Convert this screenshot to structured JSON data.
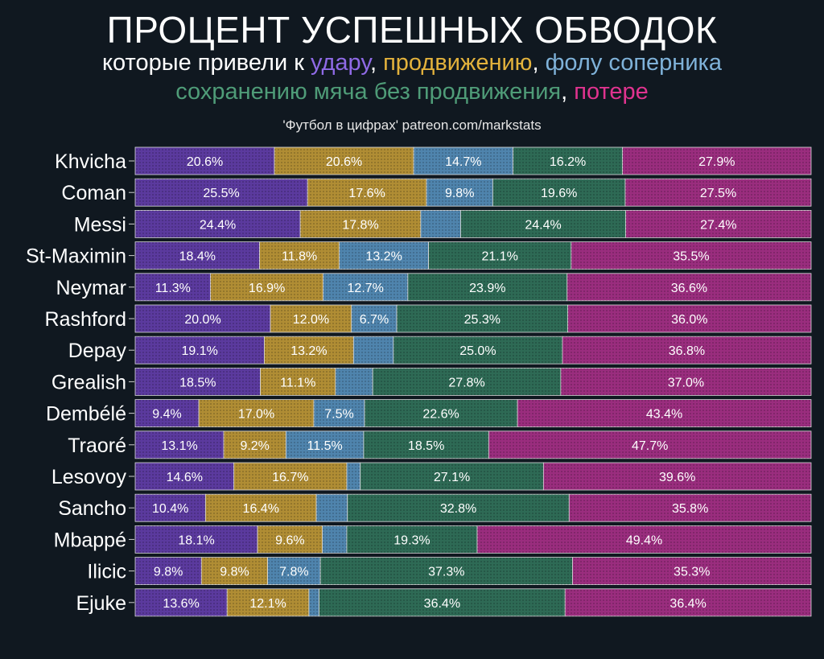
{
  "title": "ПРОЦЕНТ УСПЕШНЫХ ОБВОДОК",
  "subtitle": {
    "line1_prefix": "которые привели к ",
    "line2_sep": ", ",
    "line1_sep": ", ",
    "line2_comma": ", "
  },
  "credit": "'Футбол в цифрах' patreon.com/markstats",
  "colors": {
    "shot": "#5b3a9e",
    "progress": "#b08d34",
    "foul": "#4f84ad",
    "retain": "#2e6a55",
    "loss": "#9a2d7e"
  },
  "chart_data": {
    "type": "bar",
    "orientation": "horizontal",
    "stacked": true,
    "normalized": true,
    "title": "ПРОЦЕНТ УСПЕШНЫХ ОБВОДОК",
    "xlim": [
      0,
      100
    ],
    "categories": [
      "Khvicha",
      "Coman",
      "Messi",
      "St-Maximin",
      "Neymar",
      "Rashford",
      "Depay",
      "Grealish",
      "Dembélé",
      "Traoré",
      "Lesovoy",
      "Sancho",
      "Mbappé",
      "Ilicic",
      "Ejuke"
    ],
    "series": [
      {
        "key": "shot",
        "name": "удару",
        "color": "#5b3a9e",
        "values": [
          20.6,
          25.5,
          24.4,
          18.4,
          11.3,
          20.0,
          19.1,
          18.5,
          9.4,
          13.1,
          14.6,
          10.4,
          18.1,
          9.8,
          13.6
        ],
        "labels": [
          "20.6%",
          "25.5%",
          "24.4%",
          "18.4%",
          "11.3%",
          "20.0%",
          "19.1%",
          "18.5%",
          "9.4%",
          "13.1%",
          "14.6%",
          "10.4%",
          "18.1%",
          "9.8%",
          "13.6%"
        ]
      },
      {
        "key": "progress",
        "name": "продвижению",
        "color": "#b08d34",
        "values": [
          20.6,
          17.6,
          17.8,
          11.8,
          16.9,
          12.0,
          13.2,
          11.1,
          17.0,
          9.2,
          16.7,
          16.4,
          9.6,
          9.8,
          12.1
        ],
        "labels": [
          "20.6%",
          "17.6%",
          "17.8%",
          "11.8%",
          "16.9%",
          "12.0%",
          "13.2%",
          "11.1%",
          "17.0%",
          "9.2%",
          "16.7%",
          "16.4%",
          "9.6%",
          "9.8%",
          "12.1%"
        ]
      },
      {
        "key": "foul",
        "name": "фолу соперника",
        "color": "#4f84ad",
        "values": [
          14.7,
          9.8,
          5.9,
          13.2,
          12.7,
          6.7,
          5.9,
          5.5,
          7.5,
          11.5,
          2.0,
          4.6,
          3.6,
          7.8,
          1.5
        ],
        "labels": [
          "14.7%",
          "9.8%",
          "",
          "13.2%",
          "12.7%",
          "6.7%",
          "",
          "",
          "7.5%",
          "11.5%",
          "",
          "",
          "",
          "7.8%",
          ""
        ]
      },
      {
        "key": "retain",
        "name": "сохранению мяча без продвижения",
        "color": "#2e6a55",
        "values": [
          16.2,
          19.6,
          24.4,
          21.1,
          23.9,
          25.3,
          25.0,
          27.8,
          22.6,
          18.5,
          27.1,
          32.8,
          19.3,
          37.3,
          36.4
        ],
        "labels": [
          "16.2%",
          "19.6%",
          "24.4%",
          "21.1%",
          "23.9%",
          "25.3%",
          "25.0%",
          "27.8%",
          "22.6%",
          "18.5%",
          "27.1%",
          "32.8%",
          "19.3%",
          "37.3%",
          "36.4%"
        ]
      },
      {
        "key": "loss",
        "name": "потере",
        "color": "#9a2d7e",
        "values": [
          27.9,
          27.5,
          27.4,
          35.5,
          36.6,
          36.0,
          36.8,
          37.0,
          43.4,
          47.7,
          39.6,
          35.8,
          49.4,
          35.3,
          36.4
        ],
        "labels": [
          "27.9%",
          "27.5%",
          "27.4%",
          "35.5%",
          "36.6%",
          "36.0%",
          "36.8%",
          "37.0%",
          "43.4%",
          "47.7%",
          "39.6%",
          "35.8%",
          "49.4%",
          "35.3%",
          "36.4%"
        ]
      }
    ]
  }
}
